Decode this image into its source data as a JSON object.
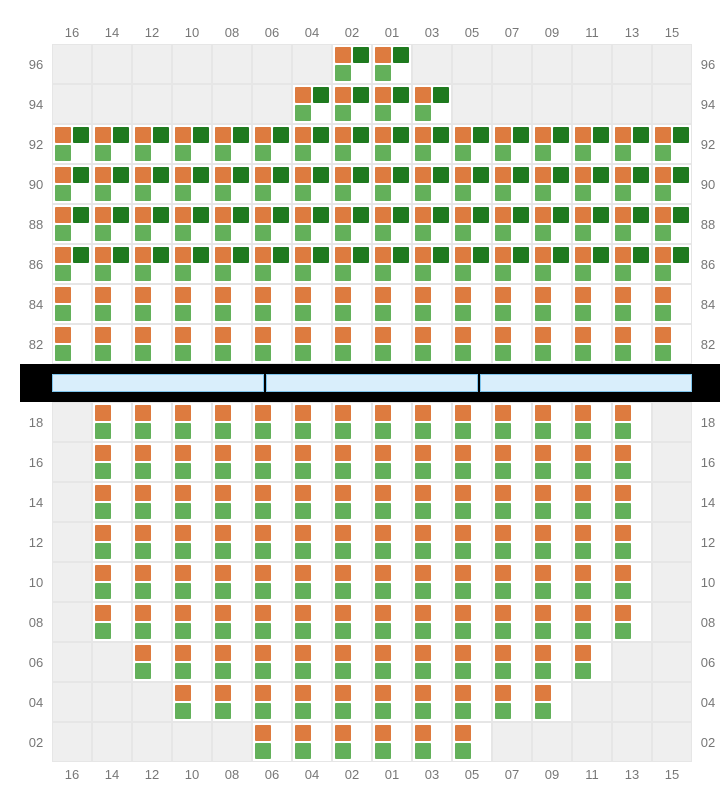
{
  "colors": {
    "orange": "#dd7b3f",
    "dark_green": "#1f7a1f",
    "green": "#63b05a",
    "empty_bg": "#efefef",
    "filled_bg": "#ffffff",
    "grid_line": "#e6e6e6",
    "label_color": "#777777",
    "stage_bg": "#d9eefb",
    "stage_border": "#7ec4ec",
    "stage_wrap": "#000000"
  },
  "columns": [
    "16",
    "14",
    "12",
    "10",
    "08",
    "06",
    "04",
    "02",
    "01",
    "03",
    "05",
    "07",
    "09",
    "11",
    "13",
    "15"
  ],
  "topSection": {
    "rows": [
      "96",
      "94",
      "92",
      "90",
      "88",
      "86",
      "84",
      "82"
    ],
    "seats": {
      "96": {
        "filledCols": [
          "02",
          "01"
        ],
        "pattern": "A"
      },
      "94": {
        "filledCols": [
          "04",
          "02",
          "01",
          "03"
        ],
        "pattern": "A"
      },
      "92": {
        "filledCols": "all",
        "pattern": "A"
      },
      "90": {
        "filledCols": "all",
        "pattern": "A"
      },
      "88": {
        "filledCols": "all",
        "pattern": "A"
      },
      "86": {
        "filledCols": "all",
        "pattern": "A"
      },
      "84": {
        "filledCols": "all",
        "pattern": "B"
      },
      "82": {
        "filledCols": "all",
        "pattern": "B"
      }
    }
  },
  "bottomSection": {
    "rows": [
      "18",
      "16",
      "14",
      "12",
      "10",
      "08",
      "06",
      "04",
      "02"
    ],
    "seats": {
      "18": {
        "filledCols": [
          "14",
          "12",
          "10",
          "08",
          "06",
          "04",
          "02",
          "01",
          "03",
          "05",
          "07",
          "09",
          "11",
          "13"
        ],
        "pattern": "B"
      },
      "16": {
        "filledCols": [
          "14",
          "12",
          "10",
          "08",
          "06",
          "04",
          "02",
          "01",
          "03",
          "05",
          "07",
          "09",
          "11",
          "13"
        ],
        "pattern": "B"
      },
      "14": {
        "filledCols": [
          "14",
          "12",
          "10",
          "08",
          "06",
          "04",
          "02",
          "01",
          "03",
          "05",
          "07",
          "09",
          "11",
          "13"
        ],
        "pattern": "B"
      },
      "12": {
        "filledCols": [
          "14",
          "12",
          "10",
          "08",
          "06",
          "04",
          "02",
          "01",
          "03",
          "05",
          "07",
          "09",
          "11",
          "13"
        ],
        "pattern": "B"
      },
      "10": {
        "filledCols": [
          "14",
          "12",
          "10",
          "08",
          "06",
          "04",
          "02",
          "01",
          "03",
          "05",
          "07",
          "09",
          "11",
          "13"
        ],
        "pattern": "B"
      },
      "08": {
        "filledCols": [
          "14",
          "12",
          "10",
          "08",
          "06",
          "04",
          "02",
          "01",
          "03",
          "05",
          "07",
          "09",
          "11",
          "13"
        ],
        "pattern": "B"
      },
      "06": {
        "filledCols": [
          "12",
          "10",
          "08",
          "06",
          "04",
          "02",
          "01",
          "03",
          "05",
          "07",
          "09",
          "11"
        ],
        "pattern": "B"
      },
      "04": {
        "filledCols": [
          "10",
          "08",
          "06",
          "04",
          "02",
          "01",
          "03",
          "05",
          "07",
          "09"
        ],
        "pattern": "B"
      },
      "02": {
        "filledCols": [
          "06",
          "04",
          "02",
          "01",
          "03",
          "05"
        ],
        "pattern": "B"
      }
    }
  },
  "patterns": {
    "A": {
      "tl": "orange",
      "tr": "dark_green",
      "bl": "green",
      "br": null
    },
    "B": {
      "tl": "orange",
      "tr": null,
      "bl": "green",
      "br": null
    }
  },
  "stage_segments": 3
}
